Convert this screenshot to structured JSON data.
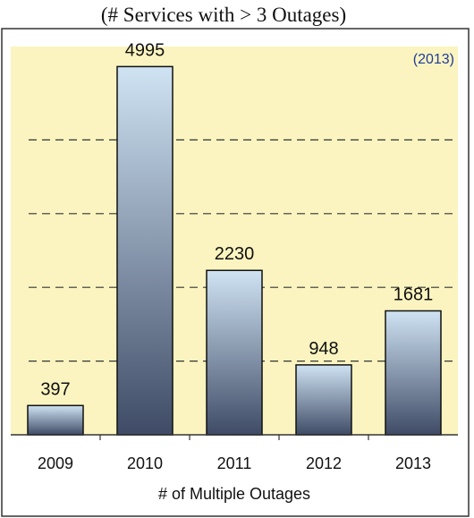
{
  "chart_data": {
    "type": "bar",
    "title": "(# Services with > 3 Outages)",
    "annotation": "(2013)",
    "categories": [
      "2009",
      "2010",
      "2011",
      "2012",
      "2013"
    ],
    "values": [
      397,
      4995,
      2230,
      948,
      1681
    ],
    "xlabel": "# of Multiple Outages",
    "ylabel": "",
    "ylim": [
      0,
      5000
    ],
    "grid": true,
    "grid_values": [
      1000,
      2000,
      3000,
      4000
    ],
    "colors": {
      "plot_background": "#fbf4c0",
      "bar_top": "#cfe3f3",
      "bar_bottom": "#3f4b66",
      "annotation": "#1f3c9a",
      "grid": "#333333"
    }
  }
}
